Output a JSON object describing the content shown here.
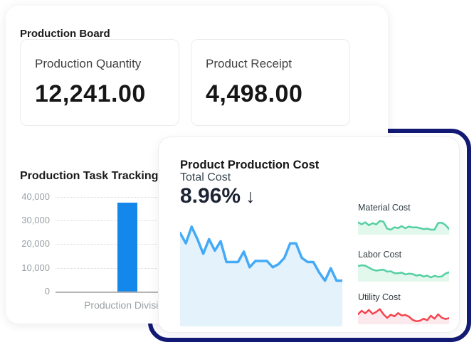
{
  "production_board": {
    "title": "Production Board",
    "metrics": [
      {
        "label": "Production Quantity",
        "value": "12,241.00"
      },
      {
        "label": "Product Receipt",
        "value": "4,498.00"
      }
    ]
  },
  "production_cost": {
    "title": "Product Production Cost",
    "total_cost_label": "Total Cost",
    "trend_arrow": "↓"
  },
  "colors": {
    "bar_blue": "#1488ea",
    "line_blue": "#45aaf6",
    "area_blue": "#e4f2fc",
    "line_green": "#55cfa2",
    "area_green": "#e2f8ed",
    "line_red": "#f4454e",
    "area_red": "#fce9ed",
    "navy_outline": "#121a75"
  },
  "chart_data": [
    {
      "type": "bar",
      "title": "Production Task Tracking",
      "categories": [
        "Production Division"
      ],
      "values": [
        37500
      ],
      "ylim": [
        0,
        40000
      ],
      "yticks": [
        "40,000",
        "30,000",
        "20,000",
        "10,000",
        "0"
      ],
      "bar_color": "#1488ea",
      "grid": "dotted-horizontal"
    },
    {
      "type": "area",
      "title": "Total Cost",
      "kpi": "8.96%",
      "trend": "down",
      "values": [
        90,
        80,
        96,
        84,
        70,
        84,
        73,
        82,
        62,
        62,
        62,
        72,
        57,
        63,
        63,
        63,
        57,
        60,
        66,
        80,
        80,
        66,
        62,
        62,
        52,
        44,
        56,
        44,
        44
      ],
      "ylim": [
        0,
        100
      ],
      "line_color": "#45aaf6",
      "fill_color": "#e4f2fc",
      "stroke_width": 3.5
    },
    {
      "type": "area",
      "title": "Material Cost",
      "values": [
        62,
        52,
        62,
        47,
        58,
        51,
        69,
        65,
        30,
        25,
        37,
        33,
        43,
        32,
        41,
        36,
        37,
        33,
        28,
        30,
        25,
        25,
        59,
        60,
        49,
        28
      ],
      "ylim": [
        0,
        100
      ],
      "line_color": "#55cfa2",
      "fill_color": "#e2f8ed",
      "stroke_width": 2.5
    },
    {
      "type": "area",
      "title": "Labor Cost",
      "values": [
        78,
        82,
        80,
        70,
        60,
        55,
        58,
        60,
        50,
        52,
        42,
        42,
        45,
        36,
        40,
        38,
        30,
        34,
        25,
        30,
        21,
        29,
        24,
        26,
        40,
        47
      ],
      "ylim": [
        0,
        100
      ],
      "line_color": "#55cfa2",
      "fill_color": "#e2f8ed",
      "stroke_width": 2.5
    },
    {
      "type": "area",
      "title": "Utility Cost",
      "values": [
        50,
        68,
        55,
        72,
        52,
        62,
        76,
        50,
        32,
        48,
        40,
        56,
        44,
        47,
        38,
        22,
        15,
        18,
        28,
        20,
        43,
        28,
        50,
        33,
        26,
        31
      ],
      "ylim": [
        0,
        100
      ],
      "line_color": "#f4454e",
      "fill_color": "#fce9ed",
      "stroke_width": 2.5
    }
  ]
}
